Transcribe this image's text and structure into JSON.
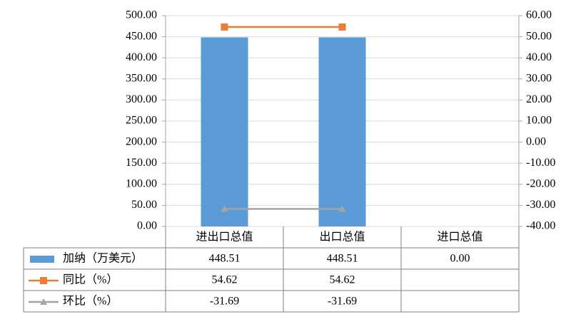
{
  "chart_data": {
    "type": "bar-line-table",
    "categories": [
      "进出口总值",
      "出口总值",
      "进口总值"
    ],
    "series": [
      {
        "name": "加纳（万美元）",
        "type": "bar",
        "color": "#5b9bd5",
        "values": [
          448.51,
          448.51,
          0.0
        ],
        "value_labels": [
          "448.51",
          "448.51",
          "0.00"
        ]
      },
      {
        "name": "同比（%）",
        "type": "line",
        "axis": "y2",
        "marker": "square",
        "color": "#ed7d31",
        "values": [
          54.62,
          54.62,
          null
        ],
        "value_labels": [
          "54.62",
          "54.62",
          null
        ]
      },
      {
        "name": "环比（%）",
        "type": "line",
        "axis": "y2",
        "marker": "triangle",
        "color": "#a5a5a5",
        "values": [
          -31.69,
          -31.69,
          null
        ],
        "value_labels": [
          "-31.69",
          "-31.69",
          null
        ]
      }
    ],
    "ylim": [
      0,
      500
    ],
    "yticks": [
      {
        "value": 0,
        "label": "0.00"
      },
      {
        "value": 50,
        "label": "50.00"
      },
      {
        "value": 100,
        "label": "100.00"
      },
      {
        "value": 150,
        "label": "150.00"
      },
      {
        "value": 200,
        "label": "200.00"
      },
      {
        "value": 250,
        "label": "250.00"
      },
      {
        "value": 300,
        "label": "300.00"
      },
      {
        "value": 350,
        "label": "350.00"
      },
      {
        "value": 400,
        "label": "400.00"
      },
      {
        "value": 450,
        "label": "450.00"
      },
      {
        "value": 500,
        "label": "500.00"
      }
    ],
    "y2lim": [
      -40,
      60
    ],
    "y2ticks": [
      {
        "value": -40,
        "label": "-40.00"
      },
      {
        "value": -30,
        "label": "-30.00"
      },
      {
        "value": -20,
        "label": "-20.00"
      },
      {
        "value": -10,
        "label": "-10.00"
      },
      {
        "value": 0,
        "label": "0.00"
      },
      {
        "value": 10,
        "label": "10.00"
      },
      {
        "value": 20,
        "label": "20.00"
      },
      {
        "value": 30,
        "label": "30.00"
      },
      {
        "value": 40,
        "label": "40.00"
      },
      {
        "value": 50,
        "label": "50.00"
      },
      {
        "value": 60,
        "label": "60.00"
      }
    ],
    "grid": true
  }
}
